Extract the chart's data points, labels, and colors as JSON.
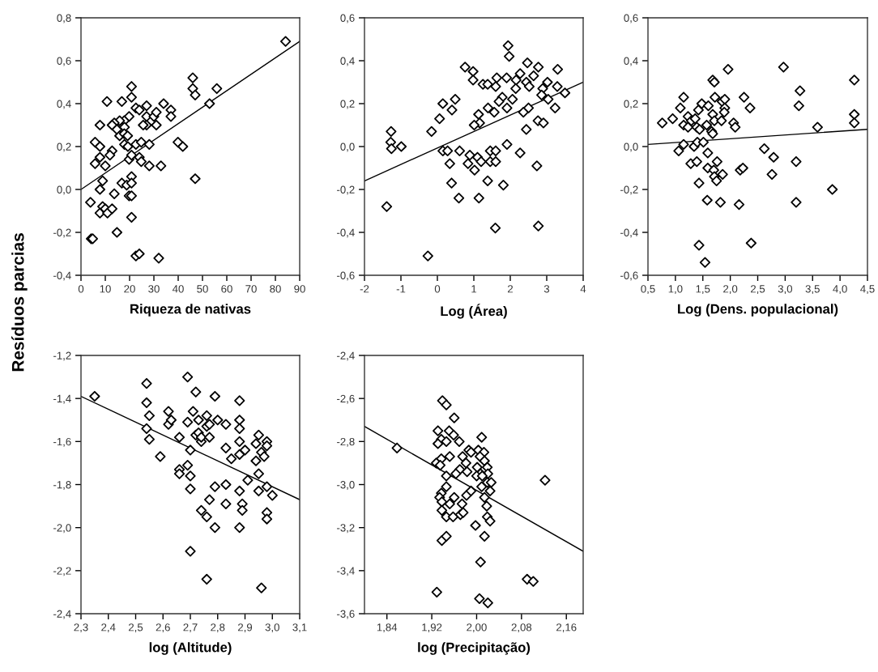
{
  "chart_data": [
    {
      "type": "scatter",
      "xlabel": "Riqueza de nativas",
      "ylabel": "Resíduos parcias",
      "xlim": [
        0,
        90
      ],
      "xticks": [
        0,
        10,
        20,
        30,
        40,
        50,
        60,
        70,
        80,
        90
      ],
      "ylim": [
        -0.4,
        0.8
      ],
      "yticks": [
        {
          "value": -0.4,
          "label": "-0,4"
        },
        {
          "value": -0.2,
          "label": "-0,2"
        },
        {
          "value": 0,
          "label": "0,0"
        },
        {
          "value": 0.2,
          "label": "0,2"
        },
        {
          "value": 0.4,
          "label": "0,4"
        },
        {
          "value": 0.6,
          "label": "0,6"
        },
        {
          "value": 0.8,
          "label": "0,8"
        }
      ],
      "series": [
        {
          "marker": "diamond",
          "color": "#000000",
          "x": [
            84.2,
            46,
            46,
            47,
            55.9,
            52.9,
            20.8,
            20.8,
            10.7,
            16.8,
            22.6,
            24,
            27,
            27,
            30,
            31,
            34,
            37,
            37,
            31,
            27,
            25.6,
            19.8,
            17.8,
            15.9,
            13.7,
            12.8,
            7.8,
            14.8,
            17.9,
            15.9,
            17.8,
            19.2,
            5.8,
            7.8,
            17.9,
            19.3,
            22.6,
            24.8,
            28.1,
            39.9,
            41.9,
            12.8,
            11.9,
            7.8,
            5.8,
            10,
            19.8,
            20.8,
            24,
            24.8,
            28.1,
            32.9,
            47,
            8.9,
            7.8,
            16.8,
            18.8,
            20.8,
            20.8,
            19.8,
            20.8,
            13.7,
            3.9,
            7.8,
            8.9,
            10,
            10.9,
            12.8,
            20.8,
            14.8,
            4.2,
            4.8,
            22.6,
            24,
            32
          ],
          "values": [
            0.69,
            0.52,
            0.47,
            0.44,
            0.47,
            0.4,
            0.48,
            0.43,
            0.41,
            0.41,
            0.38,
            0.37,
            0.39,
            0.34,
            0.34,
            0.36,
            0.4,
            0.37,
            0.34,
            0.3,
            0.3,
            0.3,
            0.34,
            0.32,
            0.32,
            0.31,
            0.3,
            0.3,
            0.28,
            0.29,
            0.25,
            0.26,
            0.25,
            0.22,
            0.2,
            0.21,
            0.2,
            0.21,
            0.22,
            0.21,
            0.22,
            0.2,
            0.18,
            0.16,
            0.15,
            0.12,
            0.11,
            0.14,
            0.16,
            0.15,
            0.13,
            0.11,
            0.11,
            0.05,
            0.04,
            0.0,
            0.03,
            0.02,
            0.06,
            0.03,
            -0.03,
            -0.03,
            -0.02,
            -0.06,
            -0.11,
            -0.08,
            -0.09,
            -0.11,
            -0.09,
            -0.13,
            -0.2,
            -0.23,
            -0.23,
            -0.31,
            -0.3,
            -0.32
          ]
        },
        {
          "type": "line",
          "marker": "none",
          "color": "#000000",
          "x": [
            0,
            90
          ],
          "values": [
            0.0,
            0.69
          ]
        }
      ]
    },
    {
      "type": "scatter",
      "xlabel": "Log (Área)",
      "xlim": [
        -2,
        4
      ],
      "xticks": [
        -2,
        -1,
        0,
        1,
        2,
        3,
        4
      ],
      "ylim": [
        -0.6,
        0.6
      ],
      "yticks": [
        {
          "value": -0.6,
          "label": "-0,6"
        },
        {
          "value": -0.4,
          "label": "-0,4"
        },
        {
          "value": -0.2,
          "label": "-0,2"
        },
        {
          "value": 0,
          "label": "0,0"
        },
        {
          "value": 0.2,
          "label": "0,2"
        },
        {
          "value": 0.4,
          "label": "0,4"
        },
        {
          "value": 0.6,
          "label": "0,6"
        }
      ],
      "series": [
        {
          "marker": "diamond",
          "color": "#000000",
          "x": [
            1.94,
            1.97,
            0.76,
            0.98,
            0.98,
            1.25,
            1.38,
            1.63,
            1.6,
            1.9,
            2.27,
            2.47,
            2.44,
            2.52,
            2.64,
            2.77,
            3.02,
            3.3,
            3.29,
            2.89,
            2.86,
            3.04,
            3.5,
            3.23,
            2.16,
            2.15,
            2.06,
            1.78,
            1.69,
            1.91,
            2.5,
            2.36,
            1.56,
            1.39,
            1.13,
            1.16,
            1.01,
            0.49,
            0.15,
            0.4,
            0.06,
            -0.16,
            2.44,
            2.76,
            2.91,
            -1.27,
            -1.28,
            -1.26,
            -0.99,
            0.15,
            0.28,
            0.61,
            0.34,
            0.89,
            0.84,
            1.02,
            1.1,
            1.2,
            1.45,
            1.45,
            1.6,
            1.6,
            1.91,
            2.27,
            2.73,
            0.39,
            1.38,
            1.81,
            0.59,
            1.14,
            -1.39,
            1.59,
            2.77,
            -0.26
          ],
          "values": [
            0.47,
            0.42,
            0.37,
            0.35,
            0.31,
            0.29,
            0.29,
            0.32,
            0.28,
            0.32,
            0.34,
            0.39,
            0.3,
            0.28,
            0.33,
            0.37,
            0.3,
            0.36,
            0.28,
            0.27,
            0.24,
            0.22,
            0.25,
            0.18,
            0.31,
            0.27,
            0.22,
            0.23,
            0.21,
            0.18,
            0.18,
            0.16,
            0.16,
            0.18,
            0.15,
            0.11,
            0.1,
            0.22,
            0.2,
            0.17,
            0.13,
            0.07,
            0.08,
            0.12,
            0.11,
            0.07,
            0.02,
            -0.01,
            0.0,
            -0.02,
            -0.02,
            -0.02,
            -0.08,
            -0.04,
            -0.08,
            -0.11,
            -0.05,
            -0.07,
            -0.02,
            -0.07,
            -0.02,
            -0.07,
            0.01,
            -0.03,
            -0.09,
            -0.17,
            -0.16,
            -0.18,
            -0.24,
            -0.24,
            -0.28,
            -0.38,
            -0.37,
            -0.51
          ]
        },
        {
          "type": "line",
          "marker": "none",
          "color": "#000000",
          "x": [
            -2,
            4
          ],
          "values": [
            -0.16,
            0.3
          ]
        }
      ]
    },
    {
      "type": "scatter",
      "xlabel": "Log (Dens. populacional)",
      "xlim": [
        0.5,
        4.5
      ],
      "xticks": [
        {
          "value": 0.5,
          "label": "0,5"
        },
        {
          "value": 1.0,
          "label": "1,0"
        },
        {
          "value": 1.5,
          "label": "1,5"
        },
        {
          "value": 2.0,
          "label": "2,0"
        },
        {
          "value": 2.5,
          "label": "2,5"
        },
        {
          "value": 3.0,
          "label": "3,0"
        },
        {
          "value": 3.5,
          "label": "3,5"
        },
        {
          "value": 4.0,
          "label": "4,0"
        },
        {
          "value": 4.5,
          "label": "4,5"
        }
      ],
      "ylim": [
        -0.6,
        0.6
      ],
      "yticks": [
        {
          "value": -0.6,
          "label": "-0,6"
        },
        {
          "value": -0.4,
          "label": "-0,4"
        },
        {
          "value": -0.2,
          "label": "-0,2"
        },
        {
          "value": 0,
          "label": "0,0"
        },
        {
          "value": 0.2,
          "label": "0,2"
        },
        {
          "value": 0.4,
          "label": "0,4"
        },
        {
          "value": 0.6,
          "label": "0,6"
        }
      ],
      "series": [
        {
          "marker": "diamond",
          "color": "#000000",
          "x": [
            0.76,
            0.95,
            1.15,
            1.09,
            1.15,
            1.23,
            1.23,
            1.29,
            1.36,
            1.42,
            1.48,
            1.6,
            1.39,
            1.44,
            1.57,
            1.68,
            1.71,
            1.72,
            1.68,
            1.71,
            1.66,
            1.68,
            1.85,
            1.9,
            1.9,
            1.89,
            1.84,
            1.96,
            2.06,
            2.09,
            2.25,
            2.36,
            1.06,
            1.15,
            1.34,
            1.4,
            1.51,
            1.28,
            1.39,
            1.59,
            1.59,
            1.7,
            1.76,
            1.71,
            1.75,
            1.86,
            1.43,
            1.58,
            1.82,
            2.16,
            2.18,
            2.23,
            2.62,
            2.79,
            2.76,
            2.97,
            3.27,
            3.25,
            3.2,
            3.2,
            3.59,
            3.86,
            4.26,
            4.26,
            4.26,
            1.43,
            1.54,
            2.38
          ],
          "values": [
            0.11,
            0.13,
            0.23,
            0.18,
            0.1,
            0.14,
            0.09,
            0.12,
            0.13,
            0.17,
            0.2,
            0.19,
            0.09,
            0.08,
            0.1,
            0.31,
            0.3,
            0.23,
            0.15,
            0.12,
            0.07,
            0.06,
            0.21,
            0.22,
            0.18,
            0.16,
            0.12,
            0.36,
            0.11,
            0.09,
            0.23,
            0.18,
            -0.02,
            0.01,
            0.0,
            0.02,
            0.02,
            -0.08,
            -0.07,
            -0.03,
            -0.1,
            -0.11,
            -0.07,
            -0.14,
            -0.16,
            -0.13,
            -0.17,
            -0.25,
            -0.26,
            -0.27,
            -0.11,
            -0.1,
            -0.01,
            -0.05,
            -0.13,
            0.37,
            0.26,
            0.19,
            -0.07,
            -0.26,
            0.09,
            -0.2,
            0.31,
            0.15,
            0.11,
            -0.46,
            -0.54,
            -0.45
          ]
        },
        {
          "type": "line",
          "marker": "none",
          "color": "#000000",
          "x": [
            0.5,
            4.5
          ],
          "values": [
            0.01,
            0.08
          ]
        }
      ]
    },
    {
      "type": "scatter",
      "xlabel": "log (Altitude)",
      "xlim": [
        2.3,
        3.1
      ],
      "xticks": [
        {
          "value": 2.3,
          "label": "2,3"
        },
        {
          "value": 2.4,
          "label": "2,4"
        },
        {
          "value": 2.5,
          "label": "2,5"
        },
        {
          "value": 2.6,
          "label": "2,6"
        },
        {
          "value": 2.7,
          "label": "2,7"
        },
        {
          "value": 2.8,
          "label": "2,8"
        },
        {
          "value": 2.9,
          "label": "2,9"
        },
        {
          "value": 3.0,
          "label": "3,0"
        },
        {
          "value": 3.1,
          "label": "3,1"
        }
      ],
      "ylim": [
        -2.4,
        -1.2
      ],
      "yticks": [
        {
          "value": -2.4,
          "label": "-2,4"
        },
        {
          "value": -2.2,
          "label": "-2,2"
        },
        {
          "value": -2.0,
          "label": "-2,0"
        },
        {
          "value": -1.8,
          "label": "-1,8"
        },
        {
          "value": -1.6,
          "label": "-1,6"
        },
        {
          "value": -1.4,
          "label": "-1,4"
        },
        {
          "value": -1.2,
          "label": "-1,2"
        }
      ],
      "series": [
        {
          "marker": "diamond",
          "color": "#000000",
          "x": [
            2.35,
            2.54,
            2.54,
            2.55,
            2.54,
            2.55,
            2.59,
            2.62,
            2.62,
            2.63,
            2.66,
            2.66,
            2.66,
            2.69,
            2.69,
            2.69,
            2.7,
            2.7,
            2.7,
            2.71,
            2.7,
            2.72,
            2.72,
            2.73,
            2.73,
            2.74,
            2.74,
            2.74,
            2.76,
            2.76,
            2.77,
            2.77,
            2.76,
            2.77,
            2.76,
            2.79,
            2.8,
            2.79,
            2.79,
            2.83,
            2.83,
            2.83,
            2.83,
            2.85,
            2.88,
            2.88,
            2.88,
            2.88,
            2.88,
            2.9,
            2.88,
            2.89,
            2.89,
            2.88,
            2.91,
            2.94,
            2.95,
            2.94,
            2.95,
            2.95,
            2.96,
            2.98,
            2.98,
            2.97,
            2.98,
            2.98,
            2.98,
            3.0,
            2.96
          ],
          "values": [
            -1.39,
            -1.33,
            -1.42,
            -1.48,
            -1.54,
            -1.59,
            -1.67,
            -1.46,
            -1.52,
            -1.5,
            -1.58,
            -1.73,
            -1.75,
            -1.3,
            -1.51,
            -1.71,
            -1.76,
            -1.82,
            -2.11,
            -1.46,
            -1.64,
            -1.37,
            -1.57,
            -1.56,
            -1.5,
            -1.6,
            -1.58,
            -1.92,
            -1.48,
            -1.53,
            -1.52,
            -1.58,
            -1.95,
            -1.87,
            -2.24,
            -1.39,
            -1.5,
            -1.81,
            -2.0,
            -1.52,
            -1.63,
            -1.8,
            -1.89,
            -1.68,
            -1.41,
            -1.5,
            -1.54,
            -1.6,
            -1.66,
            -1.64,
            -1.83,
            -1.89,
            -1.92,
            -2.0,
            -1.78,
            -1.61,
            -1.57,
            -1.69,
            -1.75,
            -1.83,
            -1.65,
            -1.6,
            -1.62,
            -1.67,
            -1.81,
            -1.93,
            -1.96,
            -1.85,
            -2.28
          ]
        },
        {
          "type": "line",
          "marker": "none",
          "color": "#000000",
          "x": [
            2.3,
            3.1
          ],
          "values": [
            -1.39,
            -1.87
          ]
        }
      ]
    },
    {
      "type": "scatter",
      "xlabel": "log (Precipitação)",
      "xlim": [
        1.8,
        2.19
      ],
      "xticks": [
        {
          "value": 1.84,
          "label": "1,84"
        },
        {
          "value": 1.92,
          "label": "1,92"
        },
        {
          "value": 2.0,
          "label": "2,00"
        },
        {
          "value": 2.08,
          "label": "2,08"
        },
        {
          "value": 2.16,
          "label": "2,16"
        }
      ],
      "ylim": [
        -3.6,
        -2.4
      ],
      "yticks": [
        {
          "value": -3.6,
          "label": "-3,6"
        },
        {
          "value": -3.4,
          "label": "-3,4"
        },
        {
          "value": -3.2,
          "label": "-3,2"
        },
        {
          "value": -3.0,
          "label": "-3,0"
        },
        {
          "value": -2.8,
          "label": "-2,8"
        },
        {
          "value": -2.6,
          "label": "-2,6"
        },
        {
          "value": -2.4,
          "label": "-2,4"
        }
      ],
      "series": [
        {
          "marker": "diamond",
          "color": "#000000",
          "x": [
            1.858,
            1.929,
            1.939,
            1.946,
            1.96,
            1.931,
            1.951,
            1.959,
            1.969,
            1.937,
            1.946,
            1.931,
            1.937,
            1.952,
            1.928,
            1.935,
            1.975,
            1.986,
            1.99,
            2.003,
            2.009,
            2.013,
            2.006,
            2.014,
            1.981,
            1.97,
            1.963,
            1.983,
            2.001,
            2.019,
            2.02,
            2.007,
            2.0,
            2.01,
            1.946,
            1.946,
            2.009,
            2.019,
            2.026,
            2.024,
            1.937,
            1.934,
            1.96,
            1.982,
            1.99,
            1.938,
            1.952,
            1.974,
            2.014,
            2.018,
            1.938,
            1.946,
            1.958,
            1.971,
            1.976,
            2.019,
            2.024,
            1.998,
            1.938,
            1.946,
            2.014,
            2.007,
            2.005,
            2.02,
            2.09,
            2.101,
            2.122
          ],
          "values": [
            -2.83,
            -3.5,
            -2.61,
            -2.63,
            -2.69,
            -2.75,
            -2.75,
            -2.77,
            -2.8,
            -2.79,
            -2.8,
            -2.81,
            -2.88,
            -2.87,
            -2.9,
            -2.91,
            -2.87,
            -2.84,
            -2.85,
            -2.84,
            -2.78,
            -2.85,
            -2.87,
            -2.89,
            -2.9,
            -2.93,
            -2.95,
            -2.94,
            -2.92,
            -2.92,
            -2.95,
            -2.95,
            -2.96,
            -2.96,
            -2.96,
            -3.01,
            -3.01,
            -2.99,
            -2.99,
            -3.03,
            -3.04,
            -3.06,
            -3.06,
            -3.05,
            -3.03,
            -3.08,
            -3.09,
            -3.09,
            -3.06,
            -3.1,
            -3.12,
            -3.15,
            -3.15,
            -3.14,
            -3.13,
            -3.15,
            -3.17,
            -3.19,
            -3.26,
            -3.24,
            -3.24,
            -3.36,
            -3.53,
            -3.55,
            -3.44,
            -3.45,
            -2.98
          ]
        },
        {
          "type": "line",
          "marker": "none",
          "color": "#000000",
          "x": [
            1.8,
            2.19
          ],
          "values": [
            -2.73,
            -3.31
          ]
        }
      ]
    }
  ]
}
